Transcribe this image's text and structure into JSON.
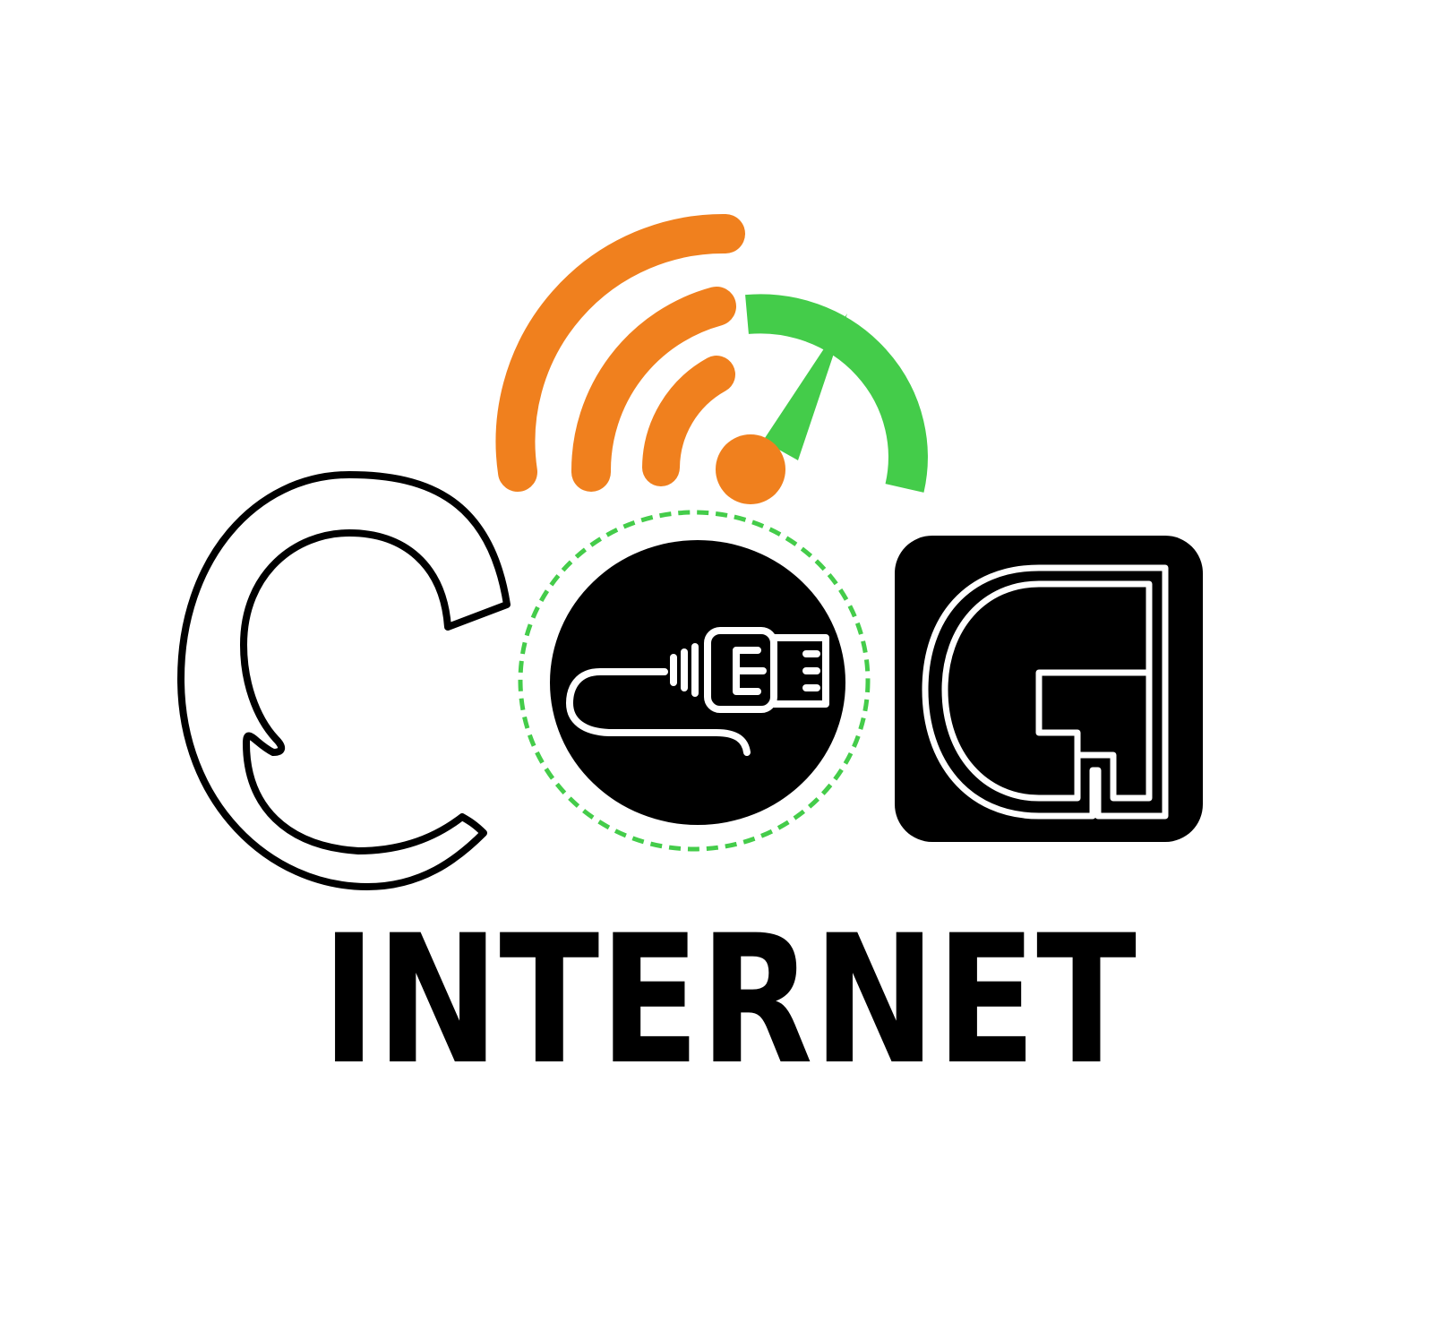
{
  "logo": {
    "brand_name": "INTERNET",
    "colors": {
      "wifi": "#F0801E",
      "speed_gauge": "#44CC4A",
      "ink": "#000000",
      "background": "#FFFFFF"
    },
    "icons": [
      "wifi-icon",
      "speedometer-icon",
      "ethernet-cable-icon",
      "letter-c-mark",
      "letter-g-mark"
    ]
  }
}
